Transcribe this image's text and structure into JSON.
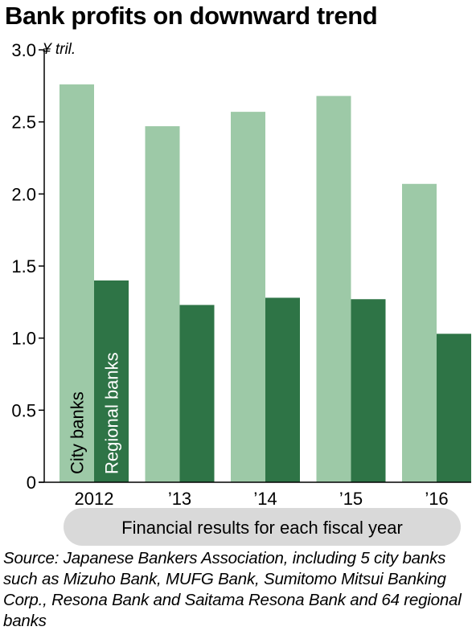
{
  "chart_data": {
    "type": "bar",
    "title": "Bank profits on downward trend",
    "unit_label": "¥ tril.",
    "categories": [
      "2012",
      "’13",
      "’14",
      "’15",
      "’16"
    ],
    "series": [
      {
        "name": "City banks",
        "color": "#9dc9a7",
        "values": [
          2.76,
          2.47,
          2.57,
          2.68,
          2.07
        ]
      },
      {
        "name": "Regional banks",
        "color": "#2e7446",
        "values": [
          1.4,
          1.23,
          1.28,
          1.27,
          1.03
        ]
      }
    ],
    "ylim": [
      0,
      3.0
    ],
    "yticks": [
      "0",
      "0.5",
      "1.0",
      "1.5",
      "2.0",
      "2.5",
      "3.0"
    ],
    "xlabel": "Financial results for each fiscal year",
    "ylabel": "",
    "grid": false,
    "legend": "inside-first-bars-vertical"
  },
  "source": "Source: Japanese Bankers Association, including 5 city banks such as Mizuho Bank, MUFG Bank, Sumitomo Mitsui Banking Corp., Resona Bank and Saitama Resona Bank and 64 regional banks",
  "colors": {
    "pill_background": "#d9d9d9",
    "axis": "#000000"
  }
}
